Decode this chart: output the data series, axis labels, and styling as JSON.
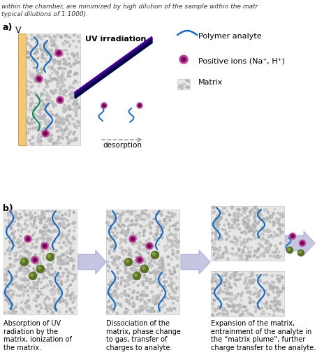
{
  "bg_color": "#ffffff",
  "plate_color": "#f0c878",
  "plate_edge": "#c8a050",
  "matrix_face": "#e4e4e4",
  "matrix_edge": "#c0c0c0",
  "polymer_blue": "#1a6abf",
  "polymer_teal": "#1a8a60",
  "ion_outer": "#b84898",
  "ion_inner": "#780058",
  "green_dark": "#5a7028",
  "green_light": "#88aa40",
  "laser_purple": "#5020a0",
  "laser_dark": "#101050",
  "arrow_col": "#9898cc",
  "text_color": "#000000",
  "label_a": "a)",
  "label_b": "b)",
  "label_v": "V",
  "label_uv": "UV irradiation",
  "label_des": "desorption",
  "leg_poly": "Polymer analyte",
  "leg_ion": "Positive ions (Na⁺, H⁺)",
  "leg_mat": "Matrix",
  "cap1": "Absorption of UV\nradiation by the\nmatrix, ionization of\nthe matrix.",
  "cap2": "Dissociation of the\nmatrix, phase change\nto gas, transfer of\ncharges to analyte.",
  "cap3": "Expansion of the matrix,\nentrainment of the analyte in\nthe “matrix plume”, further\ncharge transfer to the analyte.",
  "header1": "within the chamber, are minimized by high dilution of the sample within the matr",
  "header2": "typical dilutions of 1:1000)."
}
